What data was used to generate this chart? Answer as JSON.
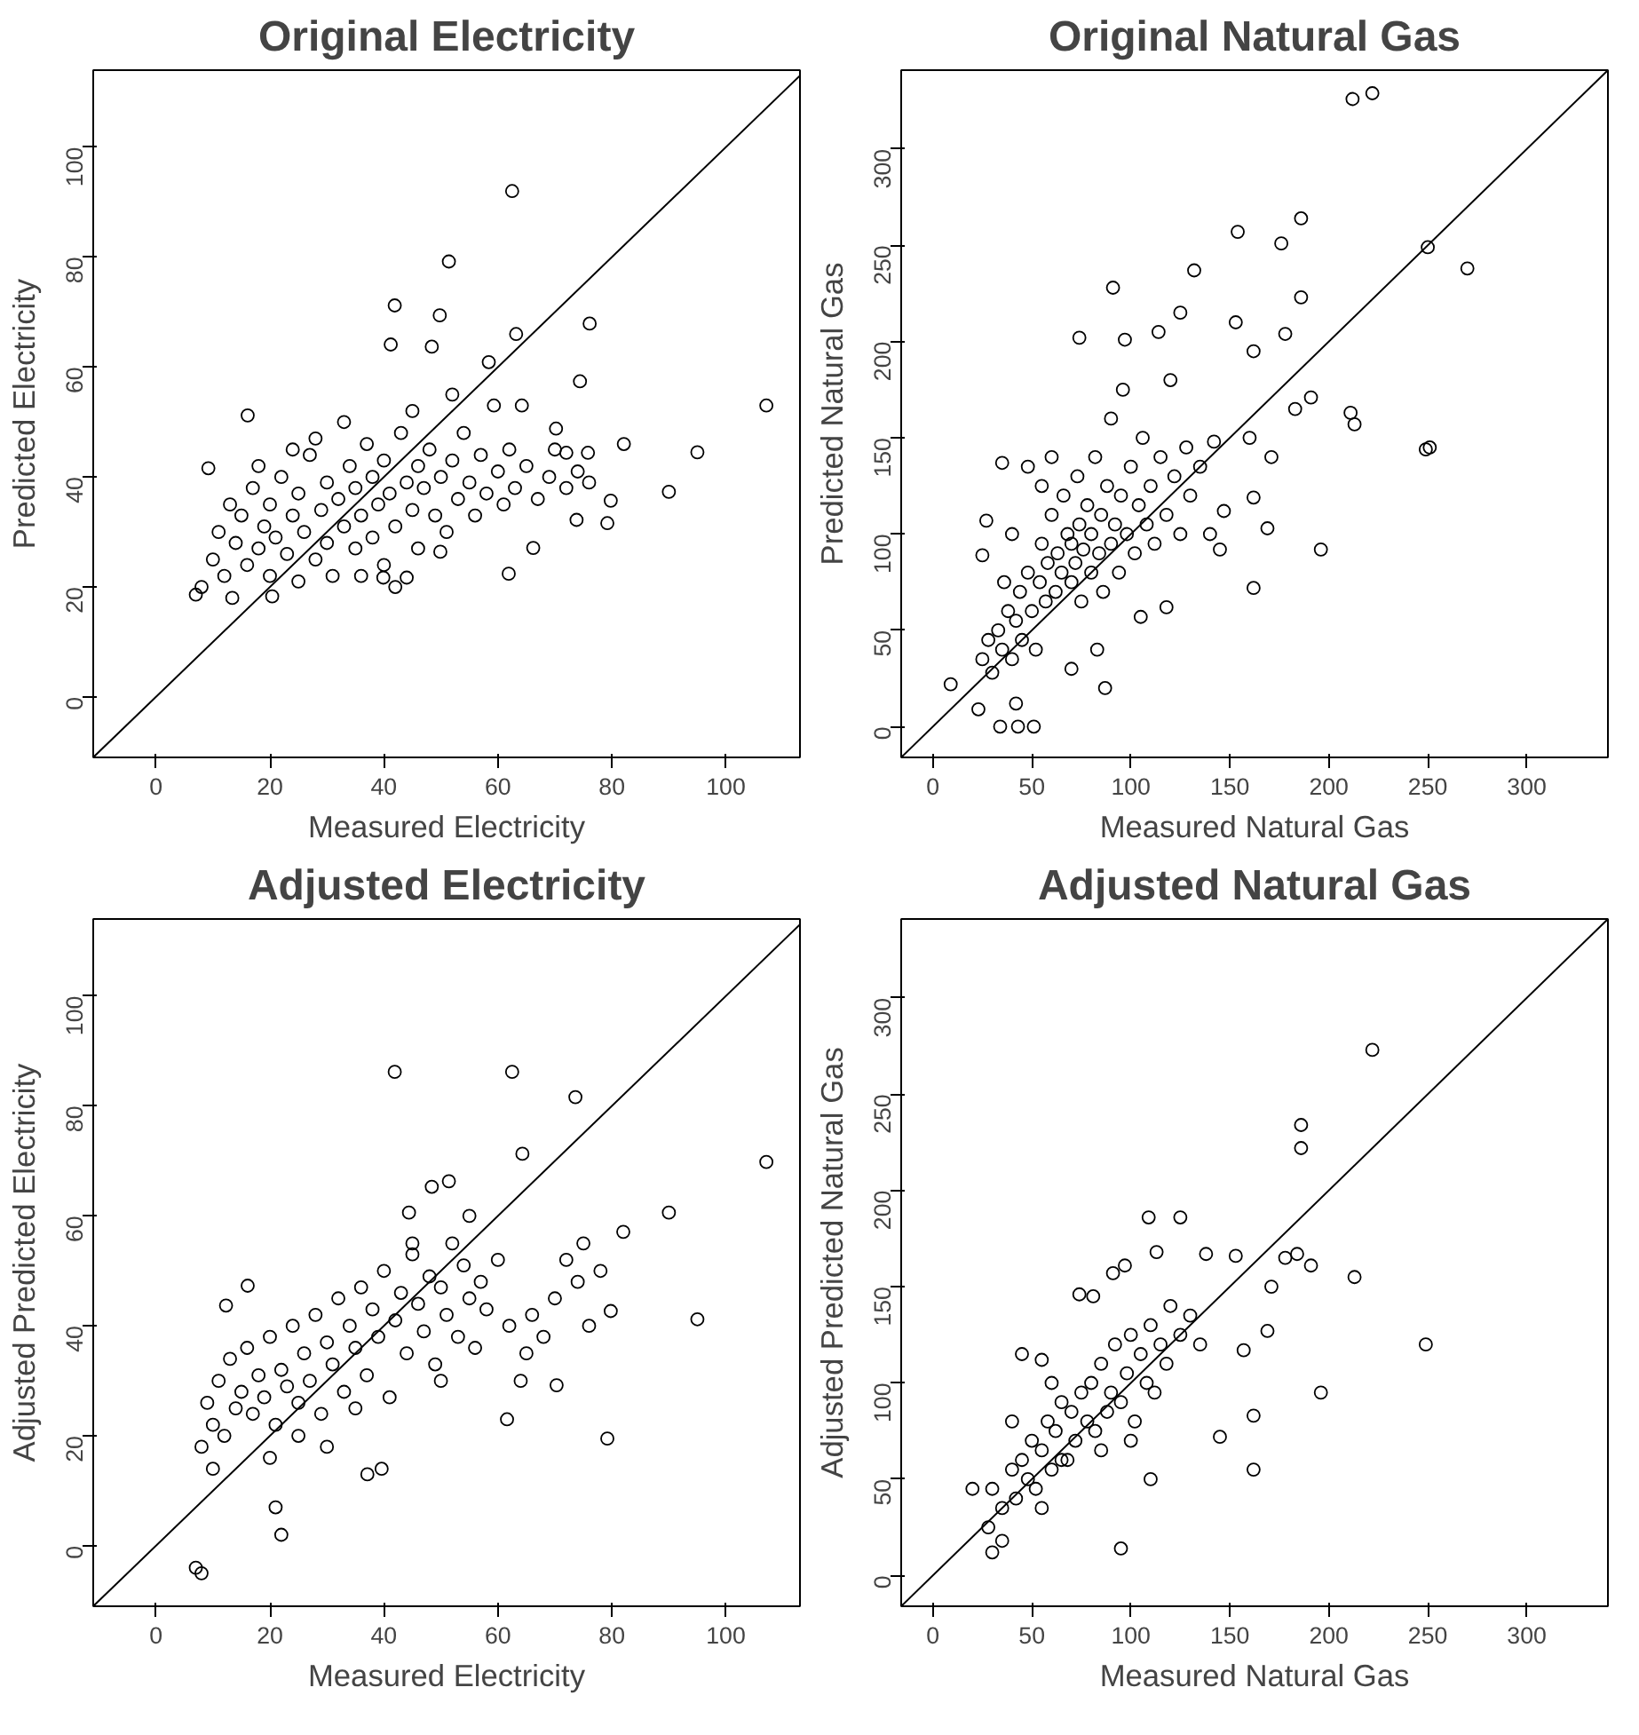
{
  "chart_data": [
    {
      "type": "scatter",
      "title": "Original Electricity",
      "xlabel": "Measured Electricity",
      "ylabel": "Predicted Electricity",
      "xlim": [
        -11,
        113
      ],
      "ylim": [
        -11,
        114
      ],
      "xticks": [
        0,
        20,
        40,
        60,
        80,
        100
      ],
      "yticks": [
        0,
        20,
        40,
        60,
        80,
        100
      ],
      "grid": false,
      "series": [
        {
          "type": "scatter",
          "marker": "circle",
          "color": "#000000",
          "x": [
            62.5,
            51.4,
            41.9,
            49.8,
            41.2,
            48.4,
            63.2,
            76.1,
            58.4,
            74.4,
            107.1,
            95,
            90,
            82.1,
            79.8,
            79.2,
            73.8,
            61.9,
            66.2,
            16.1,
            9.2,
            7,
            13.4,
            20.4,
            44,
            39.9,
            49.9,
            59.3,
            64.2,
            70.2,
            75.8,
            72,
            8,
            10,
            11,
            12,
            14,
            15,
            16,
            17,
            18,
            19,
            20,
            20,
            21,
            22,
            23,
            24,
            25,
            25,
            26,
            27,
            28,
            29,
            30,
            30,
            31,
            32,
            33,
            34,
            35,
            35,
            36,
            37,
            38,
            38,
            39,
            40,
            40,
            41,
            42,
            43,
            44,
            45,
            46,
            46,
            47,
            48,
            49,
            50,
            51,
            52,
            53,
            54,
            55,
            56,
            57,
            58,
            60,
            61,
            62,
            63,
            65,
            67,
            69,
            70,
            72,
            74,
            76,
            28,
            33,
            24,
            18,
            13,
            45,
            52,
            42,
            36
          ],
          "values": [
            92,
            79.2,
            71.2,
            69.4,
            64.1,
            63.7,
            66,
            67.9,
            60.9,
            57.4,
            53,
            44.5,
            37.3,
            46,
            35.7,
            31.6,
            32.2,
            22.4,
            27.1,
            51.2,
            41.6,
            18.6,
            18,
            18.3,
            21.7,
            21.7,
            26.4,
            53,
            53,
            48.8,
            44.4,
            44.4,
            20,
            25,
            30,
            22,
            28,
            33,
            24,
            38,
            27,
            31,
            22,
            35,
            29,
            40,
            26,
            33,
            21,
            37,
            30,
            44,
            25,
            34,
            39,
            28,
            22,
            36,
            31,
            42,
            27,
            38,
            33,
            46,
            29,
            40,
            35,
            24,
            43,
            37,
            31,
            48,
            39,
            34,
            27,
            42,
            38,
            45,
            33,
            40,
            30,
            43,
            36,
            48,
            39,
            33,
            44,
            37,
            41,
            35,
            45,
            38,
            42,
            36,
            40,
            45,
            38,
            41,
            39,
            47,
            50,
            45,
            42,
            35,
            52,
            55,
            20,
            22
          ]
        },
        {
          "type": "line",
          "color": "#000000",
          "x": [
            -11,
            113
          ],
          "values": [
            -11,
            113
          ]
        }
      ]
    },
    {
      "type": "scatter",
      "title": "Original Natural Gas",
      "xlabel": "Measured Natural Gas",
      "ylabel": "Predicted Natural Gas",
      "xlim": [
        -16,
        341
      ],
      "ylim": [
        -16,
        341
      ],
      "xticks": [
        0,
        50,
        100,
        150,
        200,
        250,
        300
      ],
      "yticks": [
        0,
        50,
        100,
        150,
        200,
        250,
        300
      ],
      "grid": false,
      "series": [
        {
          "type": "scatter",
          "marker": "circle",
          "color": "#000000",
          "x": [
            212,
            222,
            154,
            186,
            176,
            250,
            270,
            132,
            91,
            74,
            97,
            114,
            125,
            153,
            178,
            186,
            162,
            183,
            191,
            211,
            213,
            249,
            251,
            196,
            162,
            171,
            160,
            162,
            147,
            169,
            35,
            27,
            25,
            9,
            23,
            42,
            34,
            43,
            51,
            83,
            87,
            70,
            25,
            28,
            30,
            33,
            35,
            38,
            40,
            42,
            44,
            45,
            48,
            50,
            52,
            54,
            55,
            57,
            58,
            60,
            62,
            63,
            65,
            66,
            68,
            70,
            70,
            72,
            73,
            74,
            75,
            76,
            78,
            80,
            80,
            82,
            84,
            85,
            86,
            88,
            90,
            90,
            92,
            94,
            95,
            96,
            98,
            100,
            102,
            104,
            106,
            108,
            110,
            112,
            115,
            118,
            120,
            122,
            125,
            128,
            130,
            135,
            140,
            142,
            145,
            60,
            55,
            48,
            40,
            36,
            118,
            105
          ],
          "values": [
            326,
            329,
            257,
            264,
            251,
            249,
            238,
            237,
            228,
            202,
            201,
            205,
            215,
            210,
            204,
            223,
            195,
            165,
            171,
            163,
            157,
            144,
            145,
            92,
            72,
            140,
            150,
            119,
            112,
            103,
            137,
            107,
            89,
            22,
            9,
            12,
            0,
            0,
            0,
            40,
            20,
            30,
            35,
            45,
            28,
            50,
            40,
            60,
            35,
            55,
            70,
            45,
            80,
            60,
            40,
            75,
            95,
            65,
            85,
            110,
            70,
            90,
            80,
            120,
            100,
            75,
            95,
            85,
            130,
            105,
            65,
            92,
            115,
            80,
            100,
            140,
            90,
            110,
            70,
            125,
            95,
            160,
            105,
            80,
            120,
            175,
            100,
            135,
            90,
            115,
            150,
            105,
            125,
            95,
            140,
            110,
            180,
            130,
            100,
            145,
            120,
            135,
            100,
            148,
            92,
            140,
            125,
            135,
            100,
            75,
            62,
            57
          ]
        },
        {
          "type": "line",
          "color": "#000000",
          "x": [
            -16,
            341
          ],
          "values": [
            -16,
            341
          ]
        }
      ]
    },
    {
      "type": "scatter",
      "title": "Adjusted Electricity",
      "xlabel": "Measured Electricity",
      "ylabel": "Adjusted Predicted Electricity",
      "xlim": [
        -11,
        113
      ],
      "ylim": [
        -11,
        114
      ],
      "xticks": [
        0,
        20,
        40,
        60,
        80,
        100
      ],
      "yticks": [
        0,
        20,
        40,
        60,
        80,
        100
      ],
      "grid": false,
      "series": [
        {
          "type": "scatter",
          "marker": "circle",
          "color": "#000000",
          "x": [
            41.9,
            62.5,
            73.6,
            64.3,
            107.1,
            90,
            82,
            95,
            79.8,
            79.2,
            61.6,
            70.3,
            51.4,
            48.4,
            44.4,
            12.3,
            16.1,
            39.6,
            37.1,
            7,
            8,
            22,
            21,
            10,
            70,
            74,
            75,
            72,
            66,
            68,
            76,
            78,
            65,
            64,
            8,
            9,
            10,
            11,
            12,
            13,
            14,
            15,
            16,
            17,
            18,
            19,
            20,
            21,
            22,
            23,
            24,
            25,
            26,
            27,
            28,
            29,
            30,
            31,
            32,
            33,
            34,
            35,
            36,
            37,
            38,
            39,
            40,
            41,
            42,
            43,
            44,
            45,
            46,
            47,
            48,
            49,
            50,
            51,
            52,
            53,
            54,
            55,
            56,
            57,
            58,
            60,
            62,
            25,
            30,
            35,
            20,
            45,
            50,
            55
          ],
          "values": [
            86.2,
            86.2,
            81.6,
            71.3,
            69.8,
            60.6,
            57.1,
            41.2,
            42.7,
            19.5,
            23,
            29.2,
            66.3,
            65.3,
            60.6,
            43.7,
            47.3,
            14,
            13,
            -4,
            -5,
            2,
            7,
            14,
            45,
            48,
            55,
            52,
            42,
            38,
            40,
            50,
            35,
            30,
            18,
            26,
            22,
            30,
            20,
            34,
            25,
            28,
            36,
            24,
            31,
            27,
            38,
            22,
            32,
            29,
            40,
            26,
            35,
            30,
            42,
            24,
            37,
            33,
            45,
            28,
            40,
            36,
            47,
            31,
            43,
            38,
            50,
            27,
            41,
            46,
            35,
            53,
            44,
            39,
            49,
            33,
            47,
            42,
            55,
            38,
            51,
            45,
            36,
            48,
            43,
            52,
            40,
            20,
            18,
            25,
            16,
            55,
            30,
            60
          ]
        },
        {
          "type": "line",
          "color": "#000000",
          "x": [
            -11,
            113
          ],
          "values": [
            -11,
            113
          ]
        }
      ]
    },
    {
      "type": "scatter",
      "title": "Adjusted Natural Gas",
      "xlabel": "Measured Natural Gas",
      "ylabel": "Adjusted Predicted Natural Gas",
      "xlim": [
        -16,
        341
      ],
      "ylim": [
        -16,
        341
      ],
      "xticks": [
        0,
        50,
        100,
        150,
        200,
        250,
        300
      ],
      "yticks": [
        0,
        50,
        100,
        150,
        200,
        250,
        300
      ],
      "grid": false,
      "series": [
        {
          "type": "scatter",
          "marker": "circle",
          "color": "#000000",
          "x": [
            222,
            186,
            186,
            249,
            196,
            213,
            162,
            162,
            145,
            109,
            125,
            113,
            138,
            153,
            178,
            184,
            191,
            171,
            74,
            81,
            91,
            97,
            157,
            169,
            20,
            28,
            30,
            35,
            55,
            95,
            30,
            35,
            40,
            42,
            45,
            48,
            50,
            52,
            55,
            58,
            60,
            62,
            65,
            68,
            70,
            72,
            75,
            78,
            80,
            82,
            85,
            88,
            90,
            92,
            95,
            98,
            100,
            102,
            105,
            108,
            110,
            112,
            115,
            118,
            120,
            125,
            130,
            135,
            45,
            55,
            60,
            40,
            65,
            85,
            100,
            110
          ],
          "values": [
            273,
            234,
            222,
            120,
            95,
            155,
            83,
            55,
            72,
            186,
            186,
            168,
            167,
            166,
            165,
            167,
            161,
            150,
            146,
            145,
            157,
            161,
            117,
            127,
            45,
            25,
            12,
            18,
            35,
            14,
            45,
            35,
            55,
            40,
            60,
            50,
            70,
            45,
            65,
            80,
            55,
            75,
            90,
            60,
            85,
            70,
            95,
            80,
            100,
            75,
            110,
            85,
            95,
            120,
            90,
            105,
            125,
            80,
            115,
            100,
            130,
            95,
            120,
            110,
            140,
            125,
            135,
            120,
            115,
            112,
            100,
            80,
            60,
            65,
            70,
            50
          ]
        },
        {
          "type": "line",
          "color": "#000000",
          "x": [
            -16,
            341
          ],
          "values": [
            -16,
            341
          ]
        }
      ]
    }
  ]
}
